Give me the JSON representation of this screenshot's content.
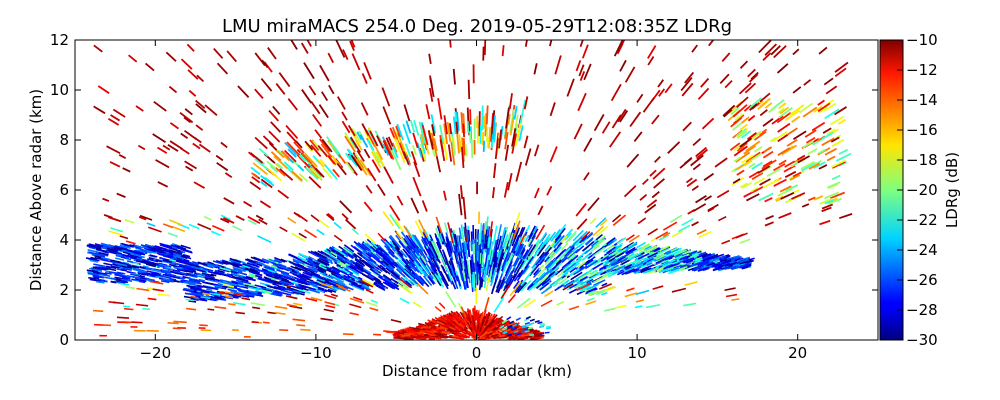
{
  "chart_data": {
    "type": "heatmap",
    "title": "LMU miraMACS 254.0 Deg. 2019-05-29T12:08:35Z  LDRg",
    "xlabel": "Distance from radar (km)",
    "ylabel": "Distance Above radar  (km)",
    "xlim": [
      -25,
      25
    ],
    "ylim": [
      0,
      12
    ],
    "xticks": [
      -20,
      -10,
      0,
      10,
      20
    ],
    "xtick_labels": [
      "−20",
      "−10",
      "0",
      "10",
      "20"
    ],
    "yticks": [
      0,
      2,
      4,
      6,
      8,
      10,
      12
    ],
    "ytick_labels": [
      "0",
      "2",
      "4",
      "6",
      "8",
      "10",
      "12"
    ],
    "colorbar": {
      "label": "LDRg (dB)",
      "range": [
        -30,
        -10
      ],
      "ticks": [
        -30,
        -28,
        -26,
        -24,
        -22,
        -20,
        -18,
        -16,
        -14,
        -12,
        -10
      ],
      "tick_labels": [
        "−30",
        "−28",
        "−26",
        "−24",
        "−22",
        "−20",
        "−18",
        "−16",
        "−14",
        "−12",
        "−10"
      ],
      "colormap": "jet"
    },
    "regions": [
      {
        "name": "main stratiform layer",
        "x_range": [
          -24,
          17
        ],
        "z_bottom_range": [
          1.2,
          2.8
        ],
        "z_top_range": [
          3.0,
          4.4
        ],
        "ldr_range": [
          -30,
          -21
        ]
      },
      {
        "name": "upper cloud band",
        "x_range": [
          -14,
          3
        ],
        "z_range": [
          6.5,
          9.0
        ],
        "ldr_range": [
          -24,
          -10
        ]
      },
      {
        "name": "upper right band",
        "x_range": [
          16,
          23
        ],
        "z_range": [
          5.5,
          9.5
        ],
        "ldr_range": [
          -22,
          -12
        ]
      },
      {
        "name": "near-surface echo",
        "x_range": [
          -5,
          4
        ],
        "z_range": [
          0,
          1.2
        ],
        "ldr_range": [
          -14,
          -10
        ]
      }
    ]
  }
}
